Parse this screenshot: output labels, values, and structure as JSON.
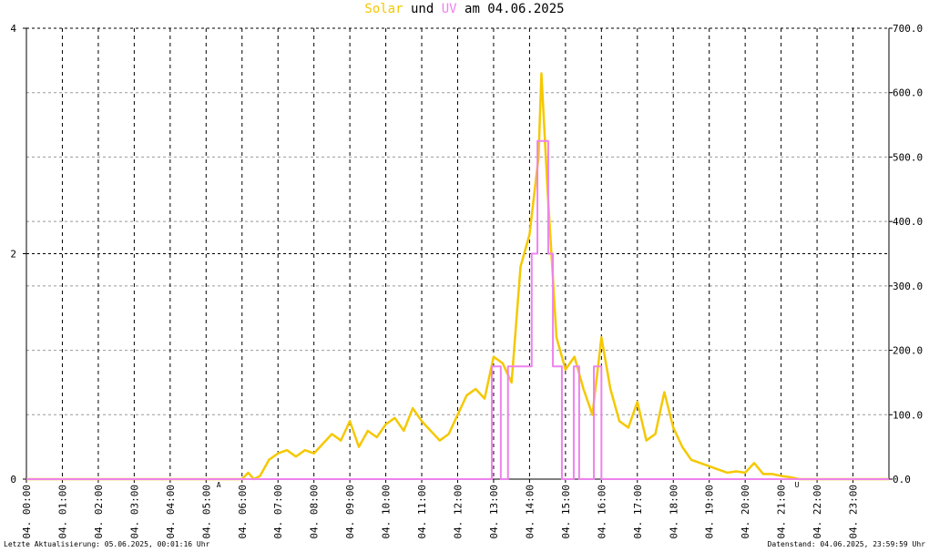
{
  "chart_data": {
    "type": "line",
    "title_join": "und",
    "title_date": "am 04.06.2025",
    "xlim": [
      0,
      24
    ],
    "xticks": [
      {
        "value": 0,
        "label": "04. 00:00"
      },
      {
        "value": 1,
        "label": "04. 01:00"
      },
      {
        "value": 2,
        "label": "04. 02:00"
      },
      {
        "value": 3,
        "label": "04. 03:00"
      },
      {
        "value": 4,
        "label": "04. 04:00"
      },
      {
        "value": 5,
        "label": "04. 05:00"
      },
      {
        "value": 6,
        "label": "04. 06:00"
      },
      {
        "value": 7,
        "label": "04. 07:00"
      },
      {
        "value": 8,
        "label": "04. 08:00"
      },
      {
        "value": 9,
        "label": "04. 09:00"
      },
      {
        "value": 10,
        "label": "04. 10:00"
      },
      {
        "value": 11,
        "label": "04. 11:00"
      },
      {
        "value": 12,
        "label": "04. 12:00"
      },
      {
        "value": 13,
        "label": "04. 13:00"
      },
      {
        "value": 14,
        "label": "04. 14:00"
      },
      {
        "value": 15,
        "label": "04. 15:00"
      },
      {
        "value": 16,
        "label": "04. 16:00"
      },
      {
        "value": 17,
        "label": "04. 17:00"
      },
      {
        "value": 18,
        "label": "04. 18:00"
      },
      {
        "value": 19,
        "label": "04. 19:00"
      },
      {
        "value": 20,
        "label": "04. 20:00"
      },
      {
        "value": 21,
        "label": "04. 21:00"
      },
      {
        "value": 22,
        "label": "04. 22:00"
      },
      {
        "value": 23,
        "label": "04. 23:00"
      }
    ],
    "ylim": [
      0,
      4
    ],
    "yticks": [
      0,
      2,
      4
    ],
    "y2lim": [
      0,
      700
    ],
    "y2ticks": [
      {
        "value": 0,
        "label": "0.0"
      },
      {
        "value": 100,
        "label": "100.0"
      },
      {
        "value": 200,
        "label": "200.0"
      },
      {
        "value": 300,
        "label": "300.0"
      },
      {
        "value": 400,
        "label": "400.0"
      },
      {
        "value": 500,
        "label": "500.0"
      },
      {
        "value": 600,
        "label": "600.0"
      },
      {
        "value": 700,
        "label": "700.0"
      }
    ],
    "grid": true,
    "series": [
      {
        "name": "Solar",
        "color": "#f5c800",
        "axis": "y2",
        "x": [
          0,
          6,
          6.17,
          6.33,
          6.5,
          6.75,
          7,
          7.25,
          7.5,
          7.75,
          8,
          8.25,
          8.5,
          8.75,
          9,
          9.25,
          9.5,
          9.75,
          10,
          10.25,
          10.5,
          10.75,
          11,
          11.25,
          11.5,
          11.75,
          12,
          12.25,
          12.5,
          12.75,
          13,
          13.25,
          13.5,
          13.75,
          14,
          14.25,
          14.33,
          14.5,
          14.75,
          15,
          15.25,
          15.5,
          15.75,
          16,
          16.25,
          16.5,
          16.75,
          17,
          17.25,
          17.5,
          17.75,
          18,
          18.25,
          18.5,
          18.75,
          19,
          19.25,
          19.5,
          19.75,
          20,
          20.25,
          20.5,
          20.75,
          21,
          21.25,
          21.5,
          24
        ],
        "values": [
          0,
          0,
          10,
          0,
          5,
          30,
          40,
          45,
          35,
          45,
          40,
          55,
          70,
          60,
          90,
          50,
          75,
          65,
          85,
          95,
          75,
          110,
          90,
          75,
          60,
          70,
          100,
          130,
          140,
          125,
          190,
          180,
          150,
          330,
          380,
          500,
          630,
          450,
          220,
          170,
          190,
          140,
          100,
          220,
          140,
          90,
          80,
          120,
          60,
          70,
          135,
          80,
          50,
          30,
          25,
          20,
          15,
          10,
          12,
          10,
          25,
          8,
          8,
          5,
          3,
          0,
          0
        ]
      },
      {
        "name": "UV",
        "color": "#ee82ee",
        "x": [
          0,
          12.95,
          12.95,
          13.2,
          13.2,
          13.4,
          13.4,
          14.06,
          14.06,
          14.22,
          14.22,
          14.52,
          14.52,
          14.65,
          14.65,
          14.9,
          14.9,
          15.23,
          15.23,
          15.38,
          15.38,
          15.79,
          15.79,
          16.0,
          16.0,
          24
        ],
        "values": [
          0,
          0,
          1,
          1,
          0,
          0,
          1,
          1,
          2,
          2,
          3,
          3,
          2,
          2,
          1,
          1,
          0,
          0,
          1,
          1,
          0,
          0,
          1,
          1,
          0,
          0
        ]
      }
    ],
    "annotations": [
      {
        "text": "A",
        "x": 5.35
      },
      {
        "text": "U",
        "x": 21.44
      }
    ],
    "footer_left": "Letzte Aktualisierung: 05.06.2025, 00:01:16 Uhr",
    "footer_right": "Datenstand: 04.06.2025, 23:59:59 Uhr"
  }
}
